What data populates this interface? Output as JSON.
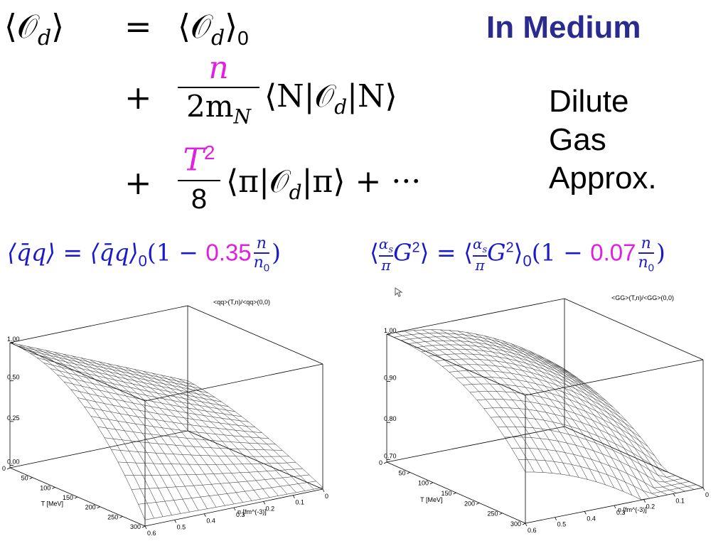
{
  "heading": {
    "title": "In Medium",
    "title_color": "#2b2b8f"
  },
  "equation": {
    "lhs": "⟨𝒪",
    "lhs_sub": "d",
    "lhs_close": "⟩",
    "equals": "=",
    "vacuum": "⟨𝒪",
    "vacuum_sub": "d",
    "vacuum_close": "⟩",
    "vacuum_zero": "0",
    "plus1": "+",
    "term1_num": "n",
    "term1_den": "2m",
    "term1_den_sub": "N",
    "term1_matrix": "⟨N|𝒪",
    "term1_matrix_sub": "d",
    "term1_matrix_close": "|N⟩",
    "plus2": "+",
    "term2_num": "T",
    "term2_num_sup": "2",
    "term2_den": "8",
    "term2_matrix": "⟨π|𝒪",
    "term2_matrix_sub": "d",
    "term2_matrix_close": "|π⟩ + ···",
    "highlight_color": "#e020e0"
  },
  "approximation": {
    "line1": "Dilute",
    "line2": "Gas",
    "line3": "Approx."
  },
  "condensates": {
    "color": "#1a1acc",
    "highlight_color": "#e020e0",
    "quark_lhs": "⟨q̄q⟩ = ⟨q̄q⟩",
    "quark_zero": "0",
    "quark_open": "(1 − ",
    "quark_coeff": "0.35",
    "quark_frac_num": "n",
    "quark_frac_den": "n",
    "quark_frac_den_sub": "0",
    "quark_close": ")",
    "gluon_lhs_open": "⟨",
    "gluon_alpha_num": "α",
    "gluon_alpha_sub": "s",
    "gluon_alpha_den": "π",
    "gluon_G": "G",
    "gluon_G_sup": "2",
    "gluon_eq": "⟩ = ⟨",
    "gluon_zero": "0",
    "gluon_open": "(1 − ",
    "gluon_coeff": "0.07",
    "gluon_frac_num": "n",
    "gluon_frac_den": "n",
    "gluon_frac_den_sub": "0",
    "gluon_close": ")"
  },
  "plot_left": {
    "title": "<qq>(T,n)/<qq>(0,0)",
    "z_ticks": [
      "1.00",
      "0.50",
      "0.25",
      "0.00"
    ],
    "t_ticks": [
      "0",
      "50",
      "100",
      "150",
      "200",
      "250",
      "300"
    ],
    "t_label": "T [MeV]",
    "n_ticks": [
      "0",
      "0.1",
      "0.2",
      "0.3",
      "0.4",
      "0.5",
      "0.6"
    ],
    "n_label": "n [fm^(-3)]"
  },
  "plot_right": {
    "title": "<GG>(T,n)/<GG>(0,0)",
    "z_ticks": [
      "1.00",
      "0.90",
      "0.80",
      "0.70"
    ],
    "t_ticks": [
      "0",
      "50",
      "100",
      "150",
      "200",
      "250",
      "300"
    ],
    "t_label": "T  [MeV]",
    "n_ticks": [
      "0",
      "0.1",
      "0.2",
      "0.3",
      "0.4",
      "0.5",
      "0.6"
    ],
    "n_label": "n  [fm^(-3)]"
  }
}
